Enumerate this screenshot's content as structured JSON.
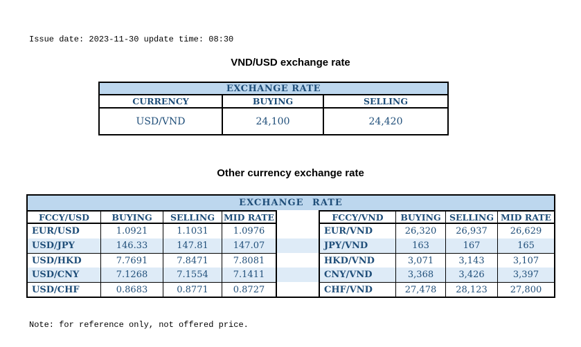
{
  "meta": {
    "issue_line": "Issue date: 2023-11-30 update time: 08:30",
    "note_line": "Note: for reference only, not offered price."
  },
  "colors": {
    "banner_background": "#BDD7EE",
    "row_stripe_background": "#DEEBF7",
    "table_text_blue": "#1F4E79",
    "border_black": "#000000"
  },
  "usd_table": {
    "title": "VND/USD exchange rate",
    "banner": "EXCHANGE RATE",
    "headers": [
      "CURRENCY",
      "BUYING",
      "SELLING"
    ],
    "rows": [
      [
        "USD/VND",
        "24,100",
        "24,420"
      ]
    ]
  },
  "other_table": {
    "title": "Other currency exchange rate",
    "banner": "EXCHANGE RATE",
    "left": {
      "headers": [
        "FCCY/USD",
        "BUYING",
        "SELLING",
        "MID RATE"
      ],
      "rows": [
        [
          "EUR/USD",
          "1.0921",
          "1.1031",
          "1.0976"
        ],
        [
          "USD/JPY",
          "146.33",
          "147.81",
          "147.07"
        ],
        [
          "USD/HKD",
          "7.7691",
          "7.8471",
          "7.8081"
        ],
        [
          "USD/CNY",
          "7.1268",
          "7.1554",
          "7.1411"
        ],
        [
          "USD/CHF",
          "0.8683",
          "0.8771",
          "0.8727"
        ]
      ]
    },
    "right": {
      "headers": [
        "FCCY/VND",
        "BUYING",
        "SELLING",
        "MID RATE"
      ],
      "rows": [
        [
          "EUR/VND",
          "26,320",
          "26,937",
          "26,629"
        ],
        [
          "JPY/VND",
          "163",
          "167",
          "165"
        ],
        [
          "HKD/VND",
          "3,071",
          "3,143",
          "3,107"
        ],
        [
          "CNY/VND",
          "3,368",
          "3,426",
          "3,397"
        ],
        [
          "CHF/VND",
          "27,478",
          "28,123",
          "27,800"
        ]
      ]
    }
  }
}
